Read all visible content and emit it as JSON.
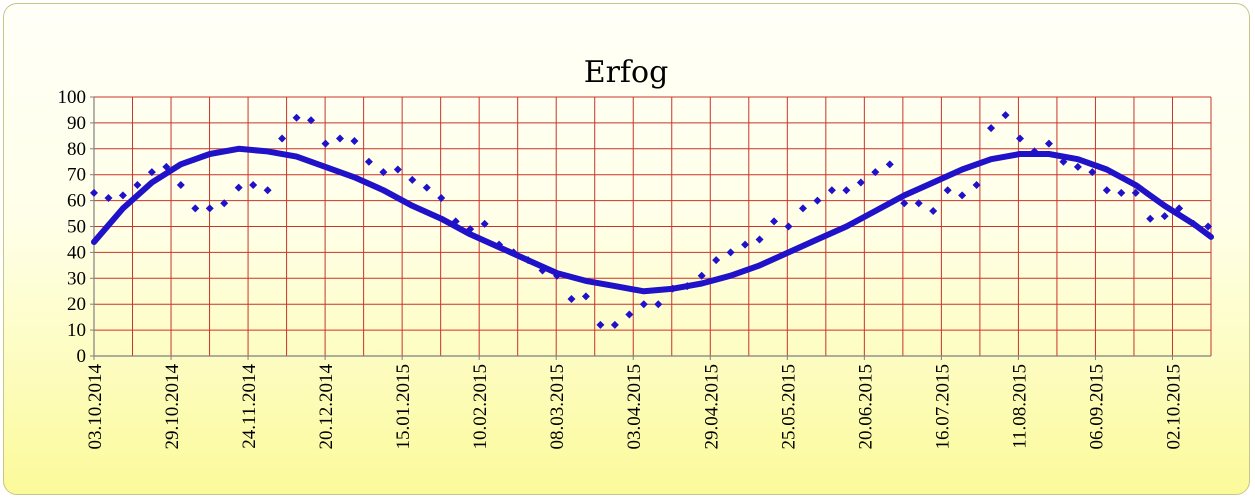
{
  "chart_data": {
    "type": "scatter",
    "title": "Erfog",
    "xlabel": "",
    "ylabel": "",
    "x_range": [
      "2014-10-03",
      "2015-10-24"
    ],
    "ylim": [
      0,
      100
    ],
    "y_ticks": [
      0,
      10,
      20,
      30,
      40,
      50,
      60,
      70,
      80,
      90,
      100
    ],
    "x_tick_labels": [
      "03.10.2014",
      "29.10.2014",
      "24.11.2014",
      "20.12.2014",
      "15.01.2015",
      "10.02.2015",
      "08.03.2015",
      "03.04.2015",
      "29.04.2015",
      "25.05.2015",
      "20.06.2015",
      "16.07.2015",
      "11.08.2015",
      "06.09.2015",
      "02.10.2015"
    ],
    "grid": true,
    "legend": "none",
    "colors": {
      "points": "#1f12c8",
      "trend": "#1f12c8",
      "grid": "#c8342a",
      "axis": "#808080"
    },
    "series": [
      {
        "kind": "scatter",
        "x": [
          "2014-10-03",
          "2014-10-08",
          "2014-10-13",
          "2014-10-18",
          "2014-10-23",
          "2014-10-28",
          "2014-11-02",
          "2014-11-07",
          "2014-11-12",
          "2014-11-17",
          "2014-11-22",
          "2014-11-27",
          "2014-12-02",
          "2014-12-07",
          "2014-12-12",
          "2014-12-17",
          "2014-12-22",
          "2014-12-27",
          "2015-01-01",
          "2015-01-06",
          "2015-01-11",
          "2015-01-16",
          "2015-01-21",
          "2015-01-26",
          "2015-01-31",
          "2015-02-05",
          "2015-02-10",
          "2015-02-15",
          "2015-02-20",
          "2015-02-25",
          "2015-03-02",
          "2015-03-07",
          "2015-03-12",
          "2015-03-17",
          "2015-03-22",
          "2015-03-27",
          "2015-04-01",
          "2015-04-06",
          "2015-04-11",
          "2015-04-16",
          "2015-04-21",
          "2015-04-26",
          "2015-05-01",
          "2015-05-06",
          "2015-05-11",
          "2015-05-16",
          "2015-05-21",
          "2015-05-26",
          "2015-05-31",
          "2015-06-05",
          "2015-06-10",
          "2015-06-15",
          "2015-06-20",
          "2015-06-25",
          "2015-06-30",
          "2015-07-05",
          "2015-07-10",
          "2015-07-15",
          "2015-07-20",
          "2015-07-25",
          "2015-07-30",
          "2015-08-04",
          "2015-08-09",
          "2015-08-14",
          "2015-08-19",
          "2015-08-24",
          "2015-08-29",
          "2015-09-03",
          "2015-09-08",
          "2015-09-13",
          "2015-09-18",
          "2015-09-23",
          "2015-09-28",
          "2015-10-03",
          "2015-10-08",
          "2015-10-13",
          "2015-10-18",
          "2015-10-23"
        ],
        "y": [
          63,
          61,
          62,
          66,
          71,
          73,
          66,
          57,
          57,
          59,
          65,
          66,
          64,
          84,
          92,
          91,
          82,
          84,
          83,
          75,
          71,
          72,
          68,
          65,
          61,
          52,
          49,
          51,
          43,
          40,
          37,
          33,
          31,
          22,
          23,
          12,
          12,
          16,
          20,
          20,
          26,
          27,
          31,
          37,
          40,
          43,
          45,
          52,
          50,
          57,
          60,
          64,
          64,
          67,
          71,
          74,
          59,
          59,
          56,
          64,
          62,
          66,
          88,
          93,
          84,
          79,
          82,
          75,
          73,
          71,
          64,
          63,
          63,
          53,
          54,
          57,
          51,
          50
        ]
      },
      {
        "kind": "trend",
        "x": [
          "2014-10-03",
          "2014-10-13",
          "2014-10-23",
          "2014-11-02",
          "2014-11-12",
          "2014-11-22",
          "2014-12-02",
          "2014-12-12",
          "2014-12-22",
          "2015-01-01",
          "2015-01-11",
          "2015-01-21",
          "2015-01-31",
          "2015-02-10",
          "2015-02-20",
          "2015-03-02",
          "2015-03-12",
          "2015-03-22",
          "2015-04-01",
          "2015-04-11",
          "2015-04-21",
          "2015-05-01",
          "2015-05-11",
          "2015-05-21",
          "2015-05-31",
          "2015-06-10",
          "2015-06-20",
          "2015-06-30",
          "2015-07-10",
          "2015-07-20",
          "2015-07-30",
          "2015-08-09",
          "2015-08-19",
          "2015-08-29",
          "2015-09-08",
          "2015-09-18",
          "2015-09-28",
          "2015-10-08",
          "2015-10-18",
          "2015-10-24"
        ],
        "y": [
          44,
          57,
          67,
          74,
          78,
          80,
          79,
          77,
          73,
          69,
          64,
          58,
          53,
          47,
          42,
          37,
          32,
          29,
          27,
          25,
          26,
          28,
          31,
          35,
          40,
          45,
          50,
          56,
          62,
          67,
          72,
          76,
          78,
          78,
          76,
          72,
          66,
          58,
          51,
          46
        ]
      }
    ]
  }
}
